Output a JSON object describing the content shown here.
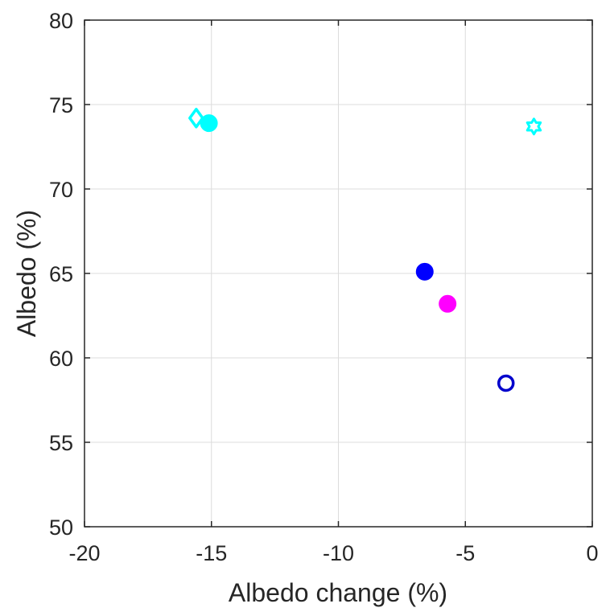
{
  "chart_data": {
    "type": "scatter",
    "xlabel": "Albedo change  (%)",
    "ylabel": "Albedo (%)",
    "xlim": [
      -20,
      0
    ],
    "ylim": [
      50,
      80
    ],
    "xticks": [
      -20,
      -15,
      -10,
      -5,
      0
    ],
    "yticks": [
      50,
      55,
      60,
      65,
      70,
      75,
      80
    ],
    "xtick_labels": [
      "-20",
      "-15",
      "-10",
      "-5",
      "0"
    ],
    "ytick_labels": [
      "50",
      "55",
      "60",
      "65",
      "70",
      "75",
      "80"
    ],
    "grid": true,
    "points": [
      {
        "x": -15.6,
        "y": 74.2,
        "color": "#00ffff",
        "marker": "diamond",
        "filled": false
      },
      {
        "x": -15.1,
        "y": 73.9,
        "color": "#00ffff",
        "marker": "circle",
        "filled": true
      },
      {
        "x": -2.3,
        "y": 73.7,
        "color": "#00ffff",
        "marker": "hexagram",
        "filled": false
      },
      {
        "x": -6.6,
        "y": 65.1,
        "color": "#0000ff",
        "marker": "circle",
        "filled": true
      },
      {
        "x": -5.7,
        "y": 63.2,
        "color": "#ff00ff",
        "marker": "circle",
        "filled": true
      },
      {
        "x": -3.4,
        "y": 58.5,
        "color": "#0000cc",
        "marker": "circle",
        "filled": false
      }
    ]
  }
}
